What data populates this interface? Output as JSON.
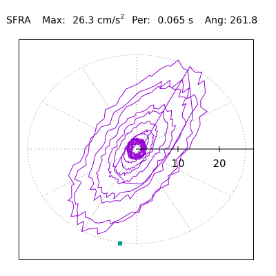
{
  "header": {
    "label": "SFRA",
    "max_label": "Max:",
    "max_value": "26.3",
    "max_unit": "cm/s",
    "max_unit_exp": "2",
    "per_label": "Per:",
    "per_value": "0.065 s",
    "ang_label": "Ang:",
    "ang_value": "261.8"
  },
  "chart_data": {
    "type": "line",
    "subtype": "polar-hodograph",
    "title": "",
    "rings": [
      10,
      20
    ],
    "ring_labels": [
      "10",
      "20"
    ],
    "max_radius": 26.3,
    "angle_deg": 261.8,
    "radial_spokes_deg": [
      0,
      30,
      60,
      90,
      120,
      150,
      180,
      210,
      240,
      270,
      300,
      330
    ],
    "grid": "dotted",
    "colors": {
      "trace": "#9400d3",
      "marker": "#00a080",
      "axis": "#000000",
      "grid": "#888888"
    },
    "trace_loops": [
      {
        "center": [
          0,
          0
        ],
        "r": 2.2,
        "tilt": 0.9
      },
      {
        "center": [
          0,
          0
        ],
        "r": 3.0,
        "tilt": 1.0
      },
      {
        "center": [
          -0.5,
          1.0
        ],
        "r": 4.5,
        "tilt": 1.1
      },
      {
        "center": [
          0.5,
          -1.0
        ],
        "r": 6.0,
        "tilt": 1.0
      },
      {
        "center": [
          -1.0,
          1.0
        ],
        "r": 8.0,
        "tilt": 1.05
      },
      {
        "center": [
          1.0,
          2.0
        ],
        "r": 11.0,
        "tilt": 1.0
      },
      {
        "center": [
          -1.0,
          -2.0
        ],
        "r": 14.0,
        "tilt": 1.05
      },
      {
        "center": [
          1.5,
          3.0
        ],
        "r": 18.0,
        "tilt": 1.0
      },
      {
        "center": [
          -1.5,
          -4.0
        ],
        "r": 22.0,
        "tilt": 1.05
      },
      {
        "center": [
          0.0,
          1.0
        ],
        "r": 25.5,
        "tilt": 1.0
      }
    ],
    "marker_point": [
      -4.0,
      -26.3
    ]
  }
}
